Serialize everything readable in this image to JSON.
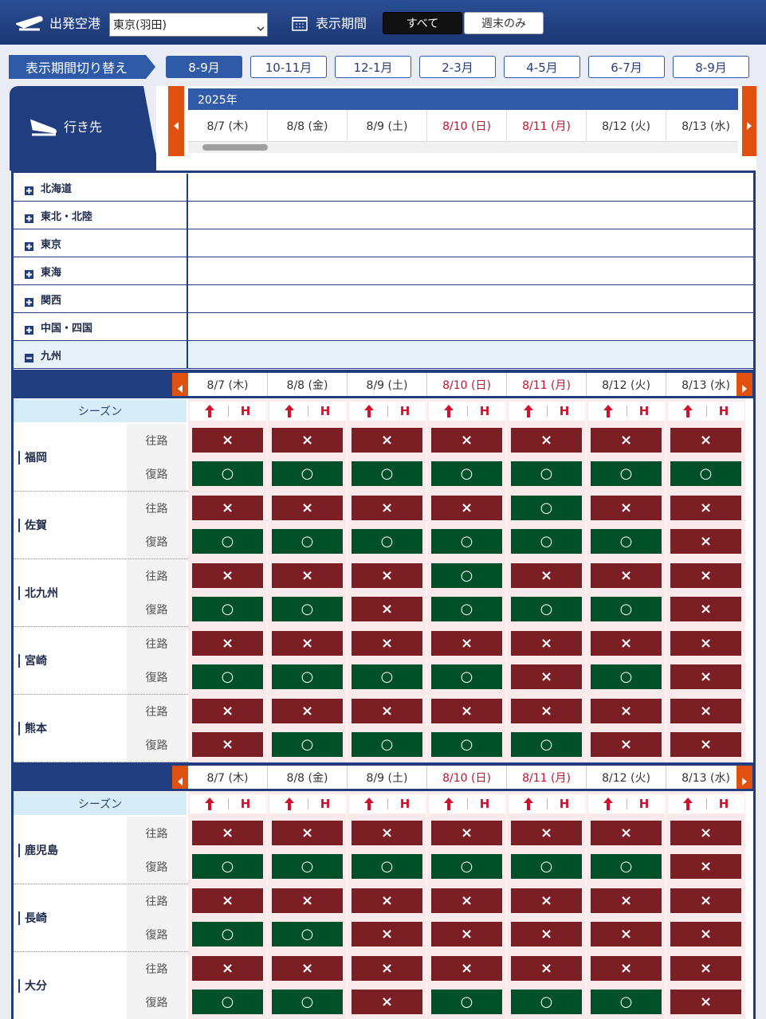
{
  "header": {
    "airport_label": "出発空港",
    "airport_value": "東京(羽田)",
    "period_label": "表示期間",
    "filters": [
      "すべて",
      "週末のみ"
    ],
    "active_filter": 0
  },
  "period_switch": {
    "label": "表示期間切り替え",
    "tabs": [
      "8-9月",
      "10-11月",
      "12-1月",
      "2-3月",
      "4-5月",
      "6-7月",
      "8-9月"
    ],
    "active": 0
  },
  "calendar": {
    "destination_label": "行き先",
    "year": "2025年",
    "dates": [
      "8/7 (木)",
      "8/8 (金)",
      "8/9 (土)",
      "8/10 (日)",
      "8/11 (月)",
      "8/12 (火)",
      "8/13 (水)"
    ],
    "holidays": [
      false,
      false,
      false,
      true,
      true,
      false,
      false
    ]
  },
  "regions": {
    "names": [
      "北海道",
      "東北・北陸",
      "東京",
      "東海",
      "関西",
      "中国・四国",
      "九州"
    ],
    "expanded": 6
  },
  "grid": {
    "season_label": "シーズン",
    "season_mark": "H",
    "directions": [
      "往路",
      "復路"
    ],
    "status_colors": {
      "○": "#00502a",
      "×": "#7b1f24"
    },
    "blocks": [
      {
        "airports": [
          {
            "name": "福岡",
            "outbound": [
              "×",
              "×",
              "×",
              "×",
              "×",
              "×",
              "×"
            ],
            "return": [
              "○",
              "○",
              "○",
              "○",
              "○",
              "○",
              "○"
            ]
          },
          {
            "name": "佐賀",
            "outbound": [
              "×",
              "×",
              "×",
              "×",
              "○",
              "×",
              "×"
            ],
            "return": [
              "○",
              "○",
              "○",
              "○",
              "○",
              "○",
              "×"
            ]
          },
          {
            "name": "北九州",
            "outbound": [
              "×",
              "×",
              "×",
              "○",
              "×",
              "×",
              "×"
            ],
            "return": [
              "○",
              "○",
              "×",
              "○",
              "○",
              "○",
              "×"
            ]
          },
          {
            "name": "宮崎",
            "outbound": [
              "×",
              "×",
              "×",
              "×",
              "×",
              "×",
              "×"
            ],
            "return": [
              "○",
              "○",
              "○",
              "○",
              "×",
              "○",
              "×"
            ]
          },
          {
            "name": "熊本",
            "outbound": [
              "×",
              "×",
              "×",
              "×",
              "×",
              "×",
              "×"
            ],
            "return": [
              "×",
              "○",
              "○",
              "○",
              "○",
              "×",
              "×"
            ]
          }
        ]
      },
      {
        "airports": [
          {
            "name": "鹿児島",
            "outbound": [
              "×",
              "×",
              "×",
              "×",
              "×",
              "×",
              "×"
            ],
            "return": [
              "○",
              "○",
              "○",
              "○",
              "○",
              "○",
              "×"
            ]
          },
          {
            "name": "長崎",
            "outbound": [
              "×",
              "×",
              "×",
              "×",
              "×",
              "×",
              "×"
            ],
            "return": [
              "○",
              "○",
              "×",
              "×",
              "×",
              "×",
              "×"
            ]
          },
          {
            "name": "大分",
            "outbound": [
              "×",
              "×",
              "×",
              "×",
              "×",
              "×",
              "×"
            ],
            "return": [
              "○",
              "○",
              "×",
              "○",
              "○",
              "○",
              "×"
            ]
          }
        ]
      }
    ]
  }
}
